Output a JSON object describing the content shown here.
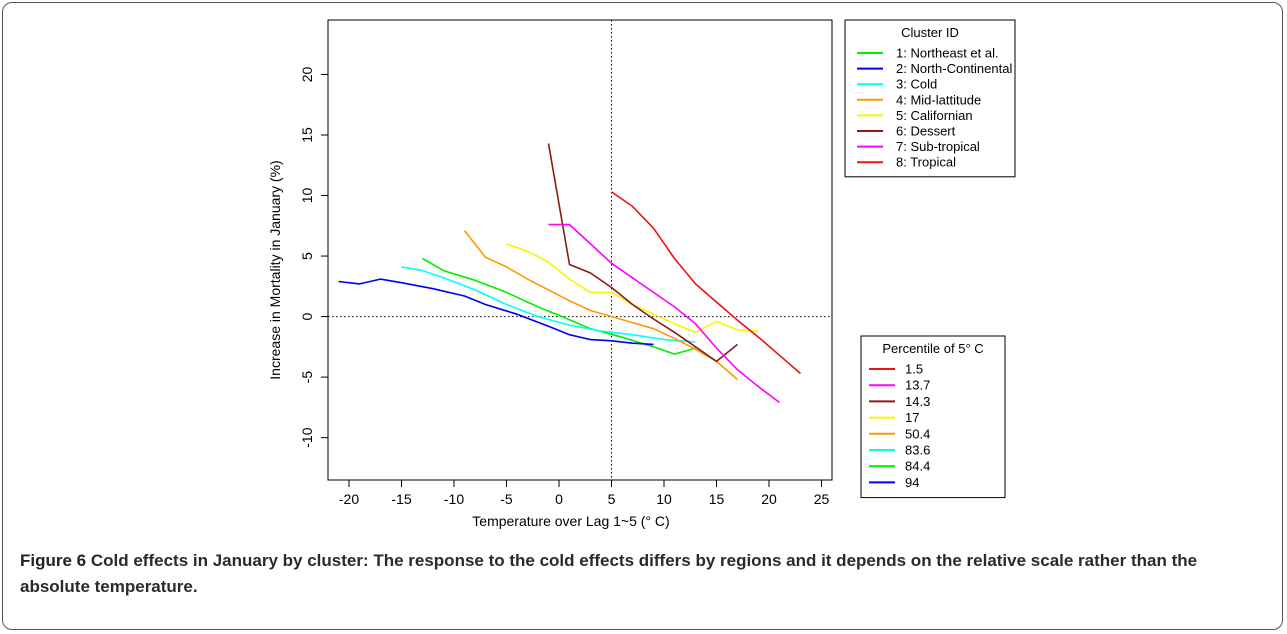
{
  "chart_data": {
    "type": "line",
    "xlabel": "Temperature over Lag 1~5 (° C)",
    "ylabel": "Increase in Mortality in January (%)",
    "xlim": [
      -22,
      26
    ],
    "ylim": [
      -13.5,
      24.5
    ],
    "xticks": [
      -20,
      -15,
      -10,
      -5,
      0,
      5,
      10,
      15,
      20,
      25
    ],
    "yticks": [
      -10,
      -5,
      0,
      5,
      10,
      15,
      20
    ],
    "reference_lines": {
      "vertical_x": 5,
      "horizontal_y": 0
    },
    "legend_cluster": {
      "title": "Cluster ID",
      "placement": "top-right",
      "entries": [
        "1: Northeast et al.",
        "2: North-Continental",
        "3: Cold",
        "4: Mid-lattitude",
        "5: Californian",
        "6: Dessert",
        "7: Sub-tropical",
        "8: Tropical"
      ]
    },
    "legend_percentile": {
      "title": "Percentile of 5° C",
      "placement": "right",
      "entries": [
        {
          "label": "1.5",
          "color": "#ee1111"
        },
        {
          "label": "13.7",
          "color": "#ff00ff"
        },
        {
          "label": "14.3",
          "color": "#8b1a1a"
        },
        {
          "label": "17",
          "color": "#f5f500"
        },
        {
          "label": "50.4",
          "color": "#ff9900"
        },
        {
          "label": "83.6",
          "color": "#00ffff"
        },
        {
          "label": "84.4",
          "color": "#00ee00"
        },
        {
          "label": "94",
          "color": "#0000ee"
        }
      ]
    },
    "series": [
      {
        "color": "#00ee00",
        "x": [
          -13,
          -11,
          -8,
          -5,
          -2,
          0,
          3,
          6,
          9,
          11,
          13
        ],
        "y": [
          4.8,
          3.8,
          3.0,
          2.0,
          0.8,
          0.1,
          -1.0,
          -1.7,
          -2.5,
          -3.1,
          -2.6
        ]
      },
      {
        "color": "#0000ee",
        "x": [
          -21,
          -19,
          -17,
          -15,
          -12,
          -9,
          -7,
          -4,
          -1,
          1,
          3,
          5,
          7,
          9
        ],
        "y": [
          2.9,
          2.7,
          3.1,
          2.8,
          2.3,
          1.7,
          1.0,
          0.2,
          -0.8,
          -1.5,
          -1.9,
          -2.0,
          -2.2,
          -2.3
        ]
      },
      {
        "color": "#00ffff",
        "x": [
          -15,
          -13,
          -11,
          -8,
          -5,
          -2,
          1,
          4,
          7,
          10,
          13
        ],
        "y": [
          4.1,
          3.8,
          3.2,
          2.2,
          1.0,
          0.0,
          -0.7,
          -1.2,
          -1.5,
          -1.9,
          -2.1
        ]
      },
      {
        "color": "#ff9900",
        "x": [
          -9,
          -7,
          -5,
          -3,
          -1,
          1,
          3,
          5,
          7,
          9,
          11,
          13,
          15,
          17
        ],
        "y": [
          7.1,
          4.9,
          4.1,
          3.1,
          2.2,
          1.3,
          0.5,
          0.0,
          -0.5,
          -1.0,
          -1.8,
          -2.7,
          -3.7,
          -5.2
        ]
      },
      {
        "color": "#f5f500",
        "x": [
          -5,
          -3,
          -1,
          1,
          3,
          5,
          7,
          9,
          11,
          13,
          15,
          17,
          19
        ],
        "y": [
          6.0,
          5.4,
          4.5,
          3.1,
          2.0,
          2.0,
          1.0,
          0.2,
          -0.6,
          -1.3,
          -0.4,
          -1.1,
          -1.2
        ]
      },
      {
        "color": "#8b1a1a",
        "x": [
          -1,
          1,
          3,
          5,
          7,
          9,
          11,
          13,
          15,
          17
        ],
        "y": [
          14.3,
          4.3,
          3.6,
          2.4,
          1.0,
          -0.2,
          -1.3,
          -2.5,
          -3.7,
          -2.3
        ]
      },
      {
        "color": "#ff00ff",
        "x": [
          -1,
          1,
          3,
          5,
          7,
          9,
          11,
          13,
          15,
          17,
          19,
          21
        ],
        "y": [
          7.6,
          7.6,
          6.0,
          4.4,
          3.2,
          2.0,
          0.8,
          -0.6,
          -2.6,
          -4.4,
          -5.8,
          -7.1
        ]
      },
      {
        "color": "#ee1111",
        "x": [
          5,
          7,
          9,
          11,
          13,
          15,
          17,
          19,
          21,
          23
        ],
        "y": [
          10.3,
          9.1,
          7.3,
          4.8,
          2.7,
          1.2,
          -0.3,
          -1.7,
          -3.2,
          -4.7
        ]
      }
    ]
  },
  "caption": {
    "label": "Figure 6",
    "text": "Cold effects in January by cluster: The response to the cold effects differs by regions and it depends on the relative scale rather than the absolute temperature."
  }
}
